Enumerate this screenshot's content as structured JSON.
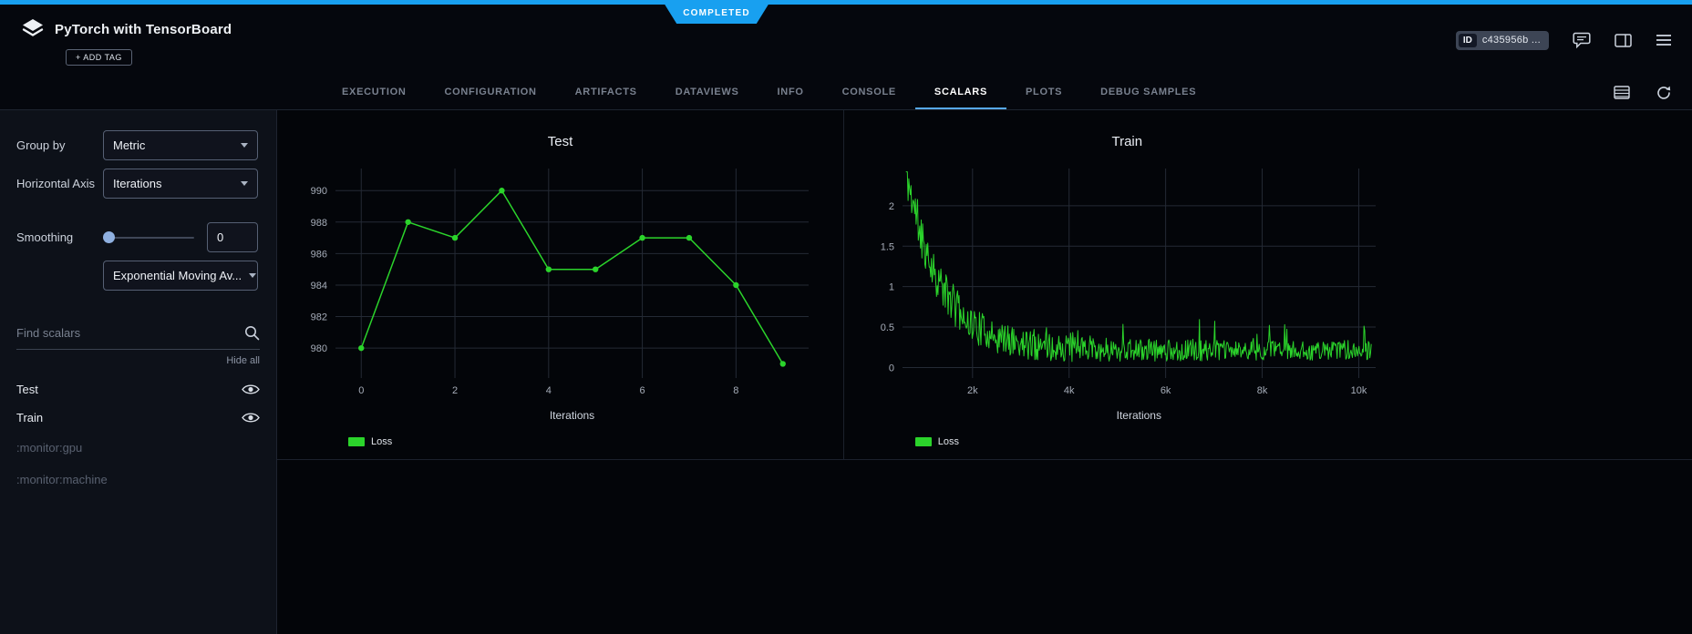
{
  "app": {
    "status": "COMPLETED",
    "title": "PyTorch with TensorBoard",
    "add_tag": "+ ADD TAG",
    "id_label": "ID",
    "id_value": "c435956b ..."
  },
  "tabs": {
    "items": [
      {
        "label": "EXECUTION",
        "active": false
      },
      {
        "label": "CONFIGURATION",
        "active": false
      },
      {
        "label": "ARTIFACTS",
        "active": false
      },
      {
        "label": "DATAVIEWS",
        "active": false
      },
      {
        "label": "INFO",
        "active": false
      },
      {
        "label": "CONSOLE",
        "active": false
      },
      {
        "label": "SCALARS",
        "active": true
      },
      {
        "label": "PLOTS",
        "active": false
      },
      {
        "label": "DEBUG SAMPLES",
        "active": false
      }
    ]
  },
  "sidebar": {
    "group_by_label": "Group by",
    "group_by_value": "Metric",
    "haxis_label": "Horizontal Axis",
    "haxis_value": "Iterations",
    "smoothing_label": "Smoothing",
    "smoothing_value": "0",
    "smoothing_type": "Exponential Moving Av...",
    "search_placeholder": "Find scalars",
    "hide_all": "Hide all",
    "scalars": [
      {
        "label": "Test",
        "visible": true,
        "enabled": true
      },
      {
        "label": "Train",
        "visible": true,
        "enabled": true
      },
      {
        "label": ":monitor:gpu",
        "enabled": false
      },
      {
        "label": ":monitor:machine",
        "enabled": false
      }
    ]
  },
  "colors": {
    "accent": "#18a0f0",
    "green": "#2bd42b",
    "grid": "#242a35",
    "tick": "#a6adb9"
  },
  "chart_data": [
    {
      "id": "test",
      "type": "line",
      "title": "Test",
      "xlabel": "Iterations",
      "legend": [
        "Loss"
      ],
      "x": [
        0,
        1,
        2,
        3,
        4,
        5,
        6,
        7,
        8,
        9
      ],
      "y": [
        980,
        988,
        987,
        990,
        985,
        985,
        987,
        987,
        984,
        979
      ],
      "xlim": [
        -0.55,
        9.55
      ],
      "ylim": [
        978.1,
        991.4
      ],
      "xticks": [
        0,
        2,
        4,
        6,
        8
      ],
      "yticks": [
        980,
        982,
        984,
        986,
        988,
        990
      ],
      "markers": true,
      "line_width": 1.5
    },
    {
      "id": "train",
      "type": "noisy-line",
      "title": "Train",
      "xlabel": "Iterations",
      "legend": [
        "Loss"
      ],
      "xlim": [
        550,
        10350
      ],
      "ylim": [
        -0.13,
        2.46
      ],
      "xticks": [
        2000,
        4000,
        6000,
        8000,
        10000
      ],
      "xtick_labels": [
        "2k",
        "4k",
        "6k",
        "8k",
        "10k"
      ],
      "yticks": [
        0,
        0.5,
        1,
        1.5,
        2
      ],
      "markers": false,
      "line_width": 1,
      "generator": {
        "seed": 11,
        "n": 640,
        "x_start": 620,
        "x_end": 10260,
        "base_offset": 0.18,
        "base_amp": 2.2,
        "base_decay": 700,
        "noise_amp_start": 0.3,
        "noise_amp_end": 0.11,
        "noise_decay": 2600,
        "spike_prob": 0.07,
        "spike_amp": 0.3,
        "y_min": 0.02,
        "y_max": 2.42
      }
    }
  ]
}
